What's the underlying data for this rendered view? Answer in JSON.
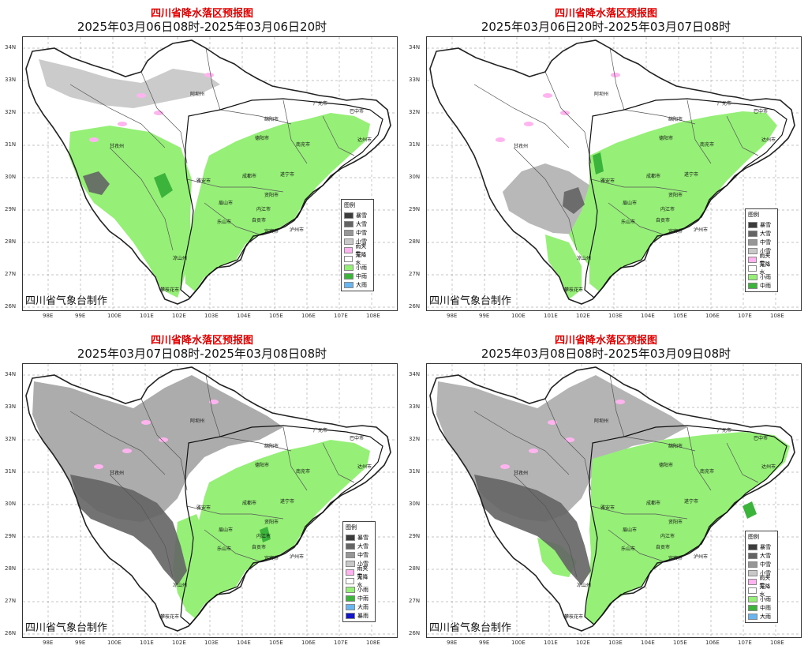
{
  "panels": [
    {
      "title": "四川省降水落区预报图",
      "subtitle": "2025年03月06日08时-2025年03月06日20时",
      "credit": "四川省气象台制作",
      "legend": {
        "title": "图例",
        "items": [
          {
            "label": "暴雪",
            "color": "#3c3c3c"
          },
          {
            "label": "大雪",
            "color": "#646464"
          },
          {
            "label": "中雪",
            "color": "#969696"
          },
          {
            "label": "小雪",
            "color": "#c8c8c8"
          },
          {
            "label": "雨夹雪",
            "color": "#ffb4f0"
          },
          {
            "label": "无降水",
            "color": "#ffffff"
          },
          {
            "label": "小雨",
            "color": "#96f078"
          },
          {
            "label": "中雨",
            "color": "#3cb43c"
          },
          {
            "label": "大雨",
            "color": "#6ab4f0"
          }
        ]
      },
      "cities": [
        "阿坝州",
        "广元市",
        "巴中市",
        "绵阳市",
        "甘孜州",
        "德阳市",
        "南充市",
        "达州市",
        "成都市",
        "遂宁市",
        "雅安市",
        "资阳市",
        "眉山市",
        "内江市",
        "乐山市",
        "自贡市",
        "宜宾市",
        "泸州市",
        "凉山州",
        "攀枝花市"
      ]
    },
    {
      "title": "四川省降水落区预报图",
      "subtitle": "2025年03月06日20时-2025年03月07日08时",
      "credit": "四川省气象台制作",
      "legend": {
        "title": "图例",
        "items": [
          {
            "label": "暴雪",
            "color": "#3c3c3c"
          },
          {
            "label": "大雪",
            "color": "#646464"
          },
          {
            "label": "中雪",
            "color": "#969696"
          },
          {
            "label": "小雪",
            "color": "#c8c8c8"
          },
          {
            "label": "雨夹雪",
            "color": "#ffb4f0"
          },
          {
            "label": "无降水",
            "color": "#ffffff"
          },
          {
            "label": "小雨",
            "color": "#96f078"
          },
          {
            "label": "中雨",
            "color": "#3cb43c"
          }
        ]
      },
      "cities": [
        "阿坝州",
        "广元市",
        "巴中市",
        "绵阳市",
        "甘孜州",
        "德阳市",
        "南充市",
        "达州市",
        "成都市",
        "遂宁市",
        "雅安市",
        "资阳市",
        "眉山市",
        "内江市",
        "乐山市",
        "自贡市",
        "宜宾市",
        "泸州市",
        "凉山州",
        "攀枝花市"
      ]
    },
    {
      "title": "四川省降水落区预报图",
      "subtitle": "2025年03月07日08时-2025年03月08日08时",
      "credit": "四川省气象台制作",
      "legend": {
        "title": "图例",
        "items": [
          {
            "label": "暴雪",
            "color": "#3c3c3c"
          },
          {
            "label": "大雪",
            "color": "#646464"
          },
          {
            "label": "中雪",
            "color": "#969696"
          },
          {
            "label": "小雪",
            "color": "#c8c8c8"
          },
          {
            "label": "雨夹雪",
            "color": "#ffb4f0"
          },
          {
            "label": "无降水",
            "color": "#ffffff"
          },
          {
            "label": "小雨",
            "color": "#96f078"
          },
          {
            "label": "中雨",
            "color": "#3cb43c"
          },
          {
            "label": "大雨",
            "color": "#6ab4f0"
          },
          {
            "label": "暴雨",
            "color": "#1414c8"
          }
        ]
      },
      "cities": [
        "阿坝州",
        "广元市",
        "巴中市",
        "绵阳市",
        "甘孜州",
        "德阳市",
        "南充市",
        "达州市",
        "成都市",
        "遂宁市",
        "雅安市",
        "资阳市",
        "眉山市",
        "内江市",
        "乐山市",
        "自贡市",
        "宜宾市",
        "泸州市",
        "凉山州",
        "攀枝花市"
      ]
    },
    {
      "title": "四川省降水落区预报图",
      "subtitle": "2025年03月08日08时-2025年03月09日08时",
      "credit": "四川省气象台制作",
      "legend": {
        "title": "图例",
        "items": [
          {
            "label": "暴雪",
            "color": "#3c3c3c"
          },
          {
            "label": "大雪",
            "color": "#646464"
          },
          {
            "label": "中雪",
            "color": "#969696"
          },
          {
            "label": "小雪",
            "color": "#c8c8c8"
          },
          {
            "label": "雨夹雪",
            "color": "#ffb4f0"
          },
          {
            "label": "无降水",
            "color": "#ffffff"
          },
          {
            "label": "小雨",
            "color": "#96f078"
          },
          {
            "label": "中雨",
            "color": "#3cb43c"
          },
          {
            "label": "大雨",
            "color": "#6ab4f0"
          }
        ]
      },
      "cities": [
        "阿坝州",
        "广元市",
        "巴中市",
        "绵阳市",
        "甘孜州",
        "德阳市",
        "南充市",
        "达州市",
        "成都市",
        "遂宁市",
        "雅安市",
        "资阳市",
        "眉山市",
        "内江市",
        "乐山市",
        "自贡市",
        "宜宾市",
        "泸州市",
        "凉山州",
        "攀枝花市"
      ]
    }
  ],
  "axes": {
    "lat_labels": [
      "34N",
      "33N",
      "32N",
      "31N",
      "30N",
      "29N",
      "28N",
      "27N",
      "26N"
    ],
    "lon_labels": [
      "98E",
      "99E",
      "100E",
      "101E",
      "102E",
      "103E",
      "104E",
      "105E",
      "106E",
      "107E",
      "108E"
    ]
  }
}
